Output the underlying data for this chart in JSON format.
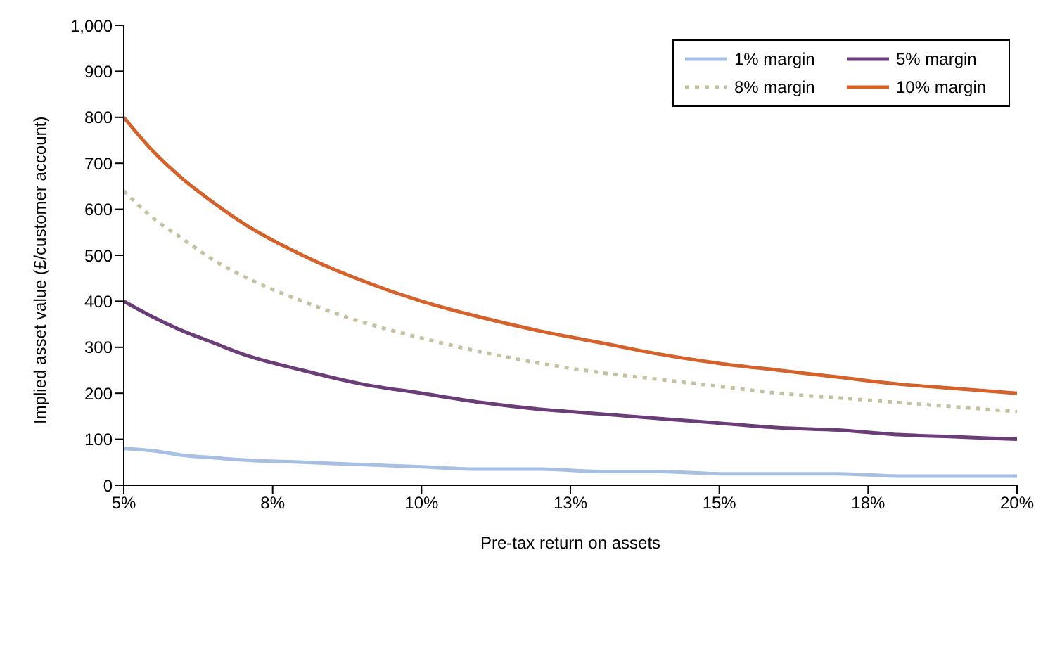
{
  "chart_data": {
    "type": "line",
    "xlabel": "Pre-tax return on assets",
    "ylabel": "Implied asset value (£/customer account)",
    "x": [
      5,
      5.5,
      6,
      6.5,
      7,
      8,
      9,
      10,
      11,
      12,
      13,
      14,
      15,
      16,
      17,
      18,
      19,
      20
    ],
    "series": [
      {
        "name": "1% margin",
        "color": "#a6bfe3",
        "line_style": "solid",
        "values": [
          80,
          75,
          65,
          60,
          55,
          50,
          45,
          40,
          35,
          35,
          30,
          30,
          25,
          25,
          25,
          20,
          20,
          20
        ]
      },
      {
        "name": "5% margin",
        "color": "#6a3d78",
        "line_style": "solid",
        "values": [
          400,
          365,
          335,
          310,
          285,
          250,
          220,
          200,
          180,
          165,
          155,
          145,
          135,
          125,
          120,
          110,
          105,
          100
        ]
      },
      {
        "name": "8% margin",
        "color": "#c4c0a0",
        "line_style": "dotted",
        "values": [
          640,
          580,
          535,
          490,
          455,
          400,
          355,
          320,
          290,
          265,
          245,
          230,
          215,
          200,
          190,
          180,
          170,
          160
        ]
      },
      {
        "name": "10% margin",
        "color": "#d4622a",
        "line_style": "solid",
        "values": [
          800,
          725,
          665,
          615,
          570,
          500,
          445,
          400,
          365,
          335,
          310,
          285,
          265,
          250,
          235,
          220,
          210,
          200
        ]
      }
    ],
    "xlim": [
      5,
      20
    ],
    "xticks": [
      {
        "value": 5,
        "label": "5%"
      },
      {
        "value": 7.5,
        "label": "8%"
      },
      {
        "value": 10,
        "label": "10%"
      },
      {
        "value": 12.5,
        "label": "13%"
      },
      {
        "value": 15,
        "label": "15%"
      },
      {
        "value": 17.5,
        "label": "18%"
      },
      {
        "value": 20,
        "label": "20%"
      }
    ],
    "ylim": [
      0,
      1000
    ],
    "yticks": [
      0,
      100,
      200,
      300,
      400,
      500,
      600,
      700,
      800,
      900,
      {
        "value": 1000,
        "label": "1,000"
      }
    ],
    "legend": "top right",
    "grid": false,
    "marker": "none"
  }
}
